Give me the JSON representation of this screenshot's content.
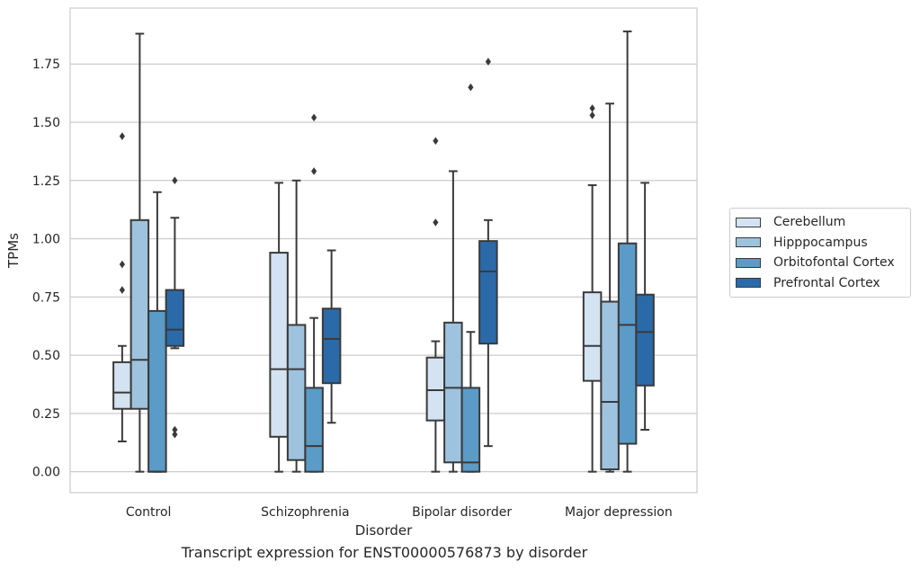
{
  "caption": "Transcript expression for ENST00000576873 by disorder",
  "chart_data": {
    "type": "box",
    "xlabel": "Disorder",
    "ylabel": "TPMs",
    "ylim": [
      -0.09,
      1.99
    ],
    "yticks": [
      "0.00",
      "0.25",
      "0.50",
      "0.75",
      "1.00",
      "1.25",
      "1.50",
      "1.75"
    ],
    "grid": "horizontal",
    "legend_position": "right",
    "categories": [
      "Control",
      "Schizophrenia",
      "Bipolar disorder",
      "Major depression"
    ],
    "series": [
      {
        "name": "Cerebellum",
        "color": "#d4e3f2",
        "boxes": [
          {
            "whislo": 0.13,
            "q1": 0.27,
            "med": 0.34,
            "q3": 0.47,
            "whishi": 0.54,
            "fliers": [
              0.78,
              0.89,
              1.44
            ]
          },
          {
            "whislo": 0.0,
            "q1": 0.15,
            "med": 0.44,
            "q3": 0.94,
            "whishi": 1.24,
            "fliers": []
          },
          {
            "whislo": 0.0,
            "q1": 0.22,
            "med": 0.35,
            "q3": 0.49,
            "whishi": 0.56,
            "fliers": [
              1.07,
              1.42
            ]
          },
          {
            "whislo": 0.0,
            "q1": 0.39,
            "med": 0.54,
            "q3": 0.77,
            "whishi": 1.23,
            "fliers": [
              1.53,
              1.56
            ]
          }
        ]
      },
      {
        "name": "Hipppocampus",
        "color": "#9dc3de",
        "boxes": [
          {
            "whislo": 0.0,
            "q1": 0.27,
            "med": 0.48,
            "q3": 1.08,
            "whishi": 1.88,
            "fliers": []
          },
          {
            "whislo": 0.0,
            "q1": 0.05,
            "med": 0.44,
            "q3": 0.63,
            "whishi": 1.25,
            "fliers": []
          },
          {
            "whislo": 0.0,
            "q1": 0.04,
            "med": 0.36,
            "q3": 0.64,
            "whishi": 1.29,
            "fliers": []
          },
          {
            "whislo": 0.0,
            "q1": 0.01,
            "med": 0.3,
            "q3": 0.73,
            "whishi": 1.58,
            "fliers": []
          }
        ]
      },
      {
        "name": "Orbitofontal Cortex",
        "color": "#5a9bc7",
        "boxes": [
          {
            "whislo": 0.0,
            "q1": 0.0,
            "med": 0.0,
            "q3": 0.69,
            "whishi": 1.2,
            "fliers": []
          },
          {
            "whislo": 0.0,
            "q1": 0.0,
            "med": 0.11,
            "q3": 0.36,
            "whishi": 0.66,
            "fliers": [
              1.29,
              1.52
            ]
          },
          {
            "whislo": 0.0,
            "q1": 0.0,
            "med": 0.04,
            "q3": 0.36,
            "whishi": 0.6,
            "fliers": [
              1.65
            ]
          },
          {
            "whislo": 0.0,
            "q1": 0.12,
            "med": 0.63,
            "q3": 0.98,
            "whishi": 1.89,
            "fliers": []
          }
        ]
      },
      {
        "name": "Prefrontal Cortex",
        "color": "#2b6aa9",
        "boxes": [
          {
            "whislo": 0.53,
            "q1": 0.54,
            "med": 0.61,
            "q3": 0.78,
            "whishi": 1.09,
            "fliers": [
              0.16,
              0.18,
              1.25
            ]
          },
          {
            "whislo": 0.21,
            "q1": 0.38,
            "med": 0.57,
            "q3": 0.7,
            "whishi": 0.95,
            "fliers": []
          },
          {
            "whislo": 0.11,
            "q1": 0.55,
            "med": 0.86,
            "q3": 0.99,
            "whishi": 1.08,
            "fliers": [
              1.76
            ]
          },
          {
            "whislo": 0.18,
            "q1": 0.37,
            "med": 0.6,
            "q3": 0.76,
            "whishi": 1.24,
            "fliers": []
          }
        ]
      }
    ]
  }
}
